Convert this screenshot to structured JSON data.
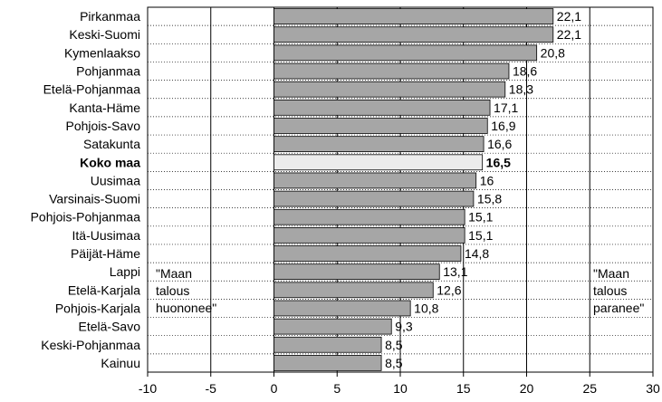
{
  "chart_data": {
    "type": "bar",
    "orientation": "horizontal",
    "categories": [
      "Pirkanmaa",
      "Keski-Suomi",
      "Kymenlaakso",
      "Pohjanmaa",
      "Etelä-Pohjanmaa",
      "Kanta-Häme",
      "Pohjois-Savo",
      "Satakunta",
      "Koko maa",
      "Uusimaa",
      "Varsinais-Suomi",
      "Pohjois-Pohjanmaa",
      "Itä-Uusimaa",
      "Päijät-Häme",
      "Lappi",
      "Etelä-Karjala",
      "Pohjois-Karjala",
      "Etelä-Savo",
      "Keski-Pohjanmaa",
      "Kainuu"
    ],
    "values": [
      22.1,
      22.1,
      20.8,
      18.6,
      18.3,
      17.1,
      16.9,
      16.6,
      16.5,
      16,
      15.8,
      15.1,
      15.1,
      14.8,
      13.1,
      12.6,
      10.8,
      9.3,
      8.5,
      8.5
    ],
    "value_labels": [
      "22,1",
      "22,1",
      "20,8",
      "18,6",
      "18,3",
      "17,1",
      "16,9",
      "16,6",
      "16,5",
      "16",
      "15,8",
      "15,1",
      "15,1",
      "14,8",
      "13,1",
      "12,6",
      "10,8",
      "9,3",
      "8,5",
      "8,5"
    ],
    "highlight": "Koko maa",
    "xlim": [
      -10,
      30
    ],
    "xticks": [
      -10,
      -5,
      0,
      5,
      10,
      15,
      20,
      25,
      30
    ],
    "xtick_labels": [
      "-10",
      "-5",
      "0",
      "5",
      "10",
      "15",
      "20",
      "25",
      "30"
    ],
    "grid": "vertical lines at ticks, dotted row separators",
    "annotations": [
      {
        "position": "left",
        "lines": [
          "\"Maan",
          "talous",
          "huononee\""
        ]
      },
      {
        "position": "right",
        "lines": [
          "\"Maan",
          "talous",
          "paranee\""
        ]
      }
    ],
    "colors": {
      "bar": "#a6a6a6",
      "highlight_bar": "#ececec",
      "bar_stroke": "#000000",
      "grid": "#000000"
    }
  }
}
